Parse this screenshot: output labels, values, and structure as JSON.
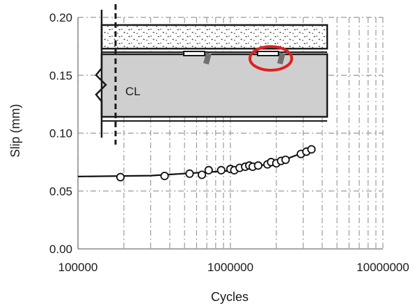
{
  "chart_data": {
    "type": "scatter",
    "xlabel": "Cycles",
    "ylabel": "Slip (mm)",
    "x_scale": "log",
    "xlim": [
      100000,
      10000000
    ],
    "ylim": [
      0,
      0.2
    ],
    "x_ticks": [
      100000,
      1000000,
      10000000
    ],
    "x_tick_labels": [
      "100000",
      "1000000",
      "10000000"
    ],
    "y_ticks": [
      0,
      0.05,
      0.1,
      0.15,
      0.2
    ],
    "y_tick_labels": [
      "0.00",
      "0.05",
      "0.10",
      "0.15",
      "0.20"
    ],
    "grid": "dash-dot",
    "legend": "none",
    "series": [
      {
        "points": [
          [
            190000,
            0.062
          ],
          [
            370000,
            0.063
          ],
          [
            540000,
            0.065
          ],
          [
            650000,
            0.064
          ],
          [
            720000,
            0.068
          ],
          [
            870000,
            0.068
          ],
          [
            1000000,
            0.069
          ],
          [
            1060000,
            0.068
          ],
          [
            1150000,
            0.07
          ],
          [
            1250000,
            0.071
          ],
          [
            1330000,
            0.072
          ],
          [
            1400000,
            0.071
          ],
          [
            1520000,
            0.072
          ],
          [
            1750000,
            0.073
          ],
          [
            1850000,
            0.075
          ],
          [
            2000000,
            0.074
          ],
          [
            2150000,
            0.076
          ],
          [
            2300000,
            0.077
          ],
          [
            2900000,
            0.082
          ],
          [
            3150000,
            0.084
          ],
          [
            3400000,
            0.086
          ]
        ],
        "trend": [
          [
            100000,
            0.0625
          ],
          [
            300000,
            0.0633
          ],
          [
            1000000,
            0.0675
          ],
          [
            2000000,
            0.0745
          ],
          [
            3600000,
            0.087
          ]
        ]
      }
    ],
    "inset_annotation": "CL",
    "highlight_color": "#e02020"
  }
}
